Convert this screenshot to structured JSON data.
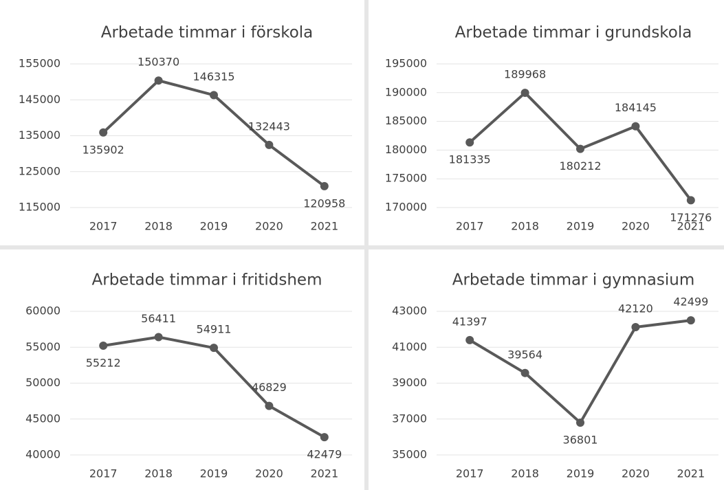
{
  "chart_data": [
    {
      "type": "line",
      "title": "Arbetade timmar i förskola",
      "categories": [
        "2017",
        "2018",
        "2019",
        "2020",
        "2021"
      ],
      "values": [
        135902,
        150370,
        146315,
        132443,
        120958
      ],
      "color": "#595959",
      "ylim": [
        115000,
        155000
      ],
      "yticks": [
        115000,
        125000,
        135000,
        145000,
        155000
      ],
      "grid": true
    },
    {
      "type": "line",
      "title": "Arbetade timmar i grundskola",
      "categories": [
        "2017",
        "2018",
        "2019",
        "2020",
        "2021"
      ],
      "values": [
        181335,
        189968,
        180212,
        184145,
        171276
      ],
      "color": "#595959",
      "ylim": [
        170000,
        195000
      ],
      "yticks": [
        170000,
        175000,
        180000,
        185000,
        190000,
        195000
      ],
      "grid": true
    },
    {
      "type": "line",
      "title": "Arbetade timmar i fritidshem",
      "categories": [
        "2017",
        "2018",
        "2019",
        "2020",
        "2021"
      ],
      "values": [
        55212,
        56411,
        54911,
        46829,
        42479
      ],
      "color": "#595959",
      "ylim": [
        40000,
        60000
      ],
      "yticks": [
        40000,
        45000,
        50000,
        55000,
        60000
      ],
      "grid": true
    },
    {
      "type": "line",
      "title": "Arbetade timmar i gymnasium",
      "categories": [
        "2017",
        "2018",
        "2019",
        "2020",
        "2021"
      ],
      "values": [
        41397,
        39564,
        36801,
        42120,
        42499
      ],
      "color": "#595959",
      "ylim": [
        35000,
        43000
      ],
      "yticks": [
        35000,
        37000,
        39000,
        41000,
        43000
      ],
      "grid": true
    }
  ]
}
